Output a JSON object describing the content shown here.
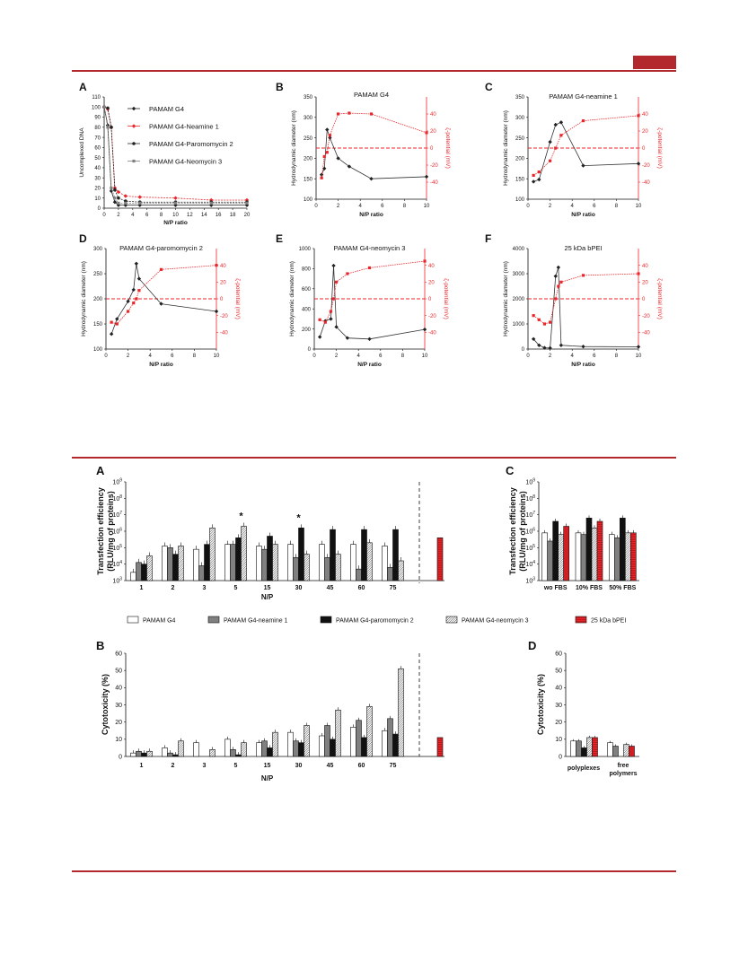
{
  "colors": {
    "accent": "#b3282d",
    "red": "#e8262b",
    "black": "#222222",
    "gray": "#808080",
    "darkgray": "#555555"
  },
  "fig1": {
    "A": {
      "letter": "A",
      "ylabel": "Uncomplexed DNA",
      "xlabel": "N/P ratio",
      "ylim": [
        0,
        110
      ],
      "xlim": [
        0,
        20
      ],
      "yticks": [
        0,
        10,
        20,
        30,
        40,
        50,
        60,
        70,
        80,
        90,
        100,
        110
      ],
      "xticks": [
        0,
        2,
        4,
        6,
        8,
        10,
        12,
        14,
        16,
        18,
        20
      ],
      "series": [
        {
          "name": "PAMAM G4",
          "color": "#222222",
          "marker": "diamond",
          "x": [
            0,
            0.5,
            1,
            1.5,
            2,
            3,
            5,
            10,
            15,
            20
          ],
          "y": [
            100,
            82,
            17,
            6,
            3,
            3,
            3,
            3,
            3,
            3
          ]
        },
        {
          "name": "PAMAM G4-Neamine 1",
          "color": "#e8262b",
          "marker": "diamond",
          "x": [
            0,
            0.5,
            1,
            1.5,
            2,
            3,
            5,
            10,
            15,
            20
          ],
          "y": [
            100,
            98,
            80,
            20,
            16,
            12,
            11,
            10,
            8,
            8
          ]
        },
        {
          "name": "PAMAM G4-Paromomycin 2",
          "color": "#222222",
          "marker": "circle",
          "x": [
            0,
            0.5,
            1,
            1.5,
            2,
            3,
            5,
            10,
            15,
            20
          ],
          "y": [
            100,
            99,
            80,
            18,
            10,
            7,
            6,
            6,
            6,
            6
          ]
        },
        {
          "name": "PAMAM G4-Neomycin 3",
          "color": "#808080",
          "marker": "square",
          "x": [
            0,
            0.5,
            1,
            1.5,
            2,
            3,
            5,
            10,
            15,
            20
          ],
          "y": [
            100,
            80,
            20,
            10,
            5,
            5,
            5,
            5,
            5,
            5
          ]
        }
      ]
    },
    "B": {
      "letter": "B",
      "title": "PAMAM G4",
      "ylabel": "Hydrodynamic diameter (nm)",
      "y2label": "ζ-potential (mV)",
      "xlabel": "N/P ratio",
      "ylim": [
        100,
        350
      ],
      "yticks": [
        100,
        150,
        200,
        250,
        300,
        350
      ],
      "xlim": [
        0,
        10
      ],
      "xticks": [
        0,
        2,
        4,
        6,
        8,
        10
      ],
      "size": {
        "x": [
          0.5,
          0.75,
          1,
          1.25,
          2,
          3,
          5,
          10
        ],
        "y": [
          160,
          175,
          270,
          250,
          200,
          180,
          150,
          155
        ]
      },
      "zeta": {
        "x": [
          0.5,
          0.75,
          1,
          1.25,
          2,
          3,
          5,
          10
        ],
        "y": [
          -35,
          -10,
          -5,
          15,
          40,
          41,
          40,
          18
        ]
      }
    },
    "C": {
      "letter": "C",
      "title": "PAMAM G4-neamine 1",
      "ylabel": "Hydrodynamic diameter (nm)",
      "y2label": "ζ-potential (mV)",
      "xlabel": "N/P ratio",
      "ylim": [
        100,
        350
      ],
      "yticks": [
        100,
        150,
        200,
        250,
        300,
        350
      ],
      "xlim": [
        0,
        10
      ],
      "xticks": [
        0,
        2,
        4,
        6,
        8,
        10
      ],
      "size": {
        "x": [
          0.5,
          1,
          2,
          2.5,
          3,
          5,
          10
        ],
        "y": [
          143,
          148,
          240,
          282,
          288,
          182,
          187
        ]
      },
      "zeta": {
        "x": [
          0.5,
          1,
          2,
          2.5,
          3,
          5,
          10
        ],
        "y": [
          -32,
          -28,
          -15,
          0,
          15,
          32,
          38
        ]
      }
    },
    "D": {
      "letter": "D",
      "title": "PAMAM G4-paromomycin 2",
      "ylabel": "Hydrodynamic diameter (nm)",
      "y2label": "ζ-potential (mV)",
      "xlabel": "N/P ratio",
      "ylim": [
        100,
        300
      ],
      "yticks": [
        100,
        150,
        200,
        250,
        300
      ],
      "xlim": [
        0,
        10
      ],
      "xticks": [
        0,
        2,
        4,
        6,
        8,
        10
      ],
      "size": {
        "x": [
          0.5,
          1,
          2,
          2.5,
          2.75,
          3,
          5,
          10
        ],
        "y": [
          130,
          160,
          195,
          218,
          270,
          240,
          190,
          175
        ]
      },
      "zeta": {
        "x": [
          0.5,
          1,
          2,
          2.5,
          2.75,
          3,
          5,
          10
        ],
        "y": [
          -28,
          -30,
          -15,
          -5,
          0,
          10,
          35,
          40
        ]
      }
    },
    "E": {
      "letter": "E",
      "title": "PAMAM G4-neomycin 3",
      "ylabel": "Hydrodynamic diameter (nm)",
      "y2label": "ζ-potential (mV)",
      "xlabel": "N/P ratio",
      "ylim": [
        0,
        1000
      ],
      "yticks": [
        0,
        200,
        400,
        600,
        800,
        1000
      ],
      "xlim": [
        0,
        10
      ],
      "xticks": [
        0,
        2,
        4,
        6,
        8,
        10
      ],
      "size": {
        "x": [
          0.5,
          1,
          1.5,
          1.75,
          2,
          3,
          5,
          10
        ],
        "y": [
          120,
          280,
          300,
          830,
          220,
          110,
          100,
          195
        ]
      },
      "zeta": {
        "x": [
          0.5,
          1,
          1.5,
          1.75,
          2,
          3,
          5,
          10
        ],
        "y": [
          -25,
          -28,
          -15,
          0,
          20,
          30,
          37,
          45
        ]
      }
    },
    "F": {
      "letter": "F",
      "title": "25 kDa bPEI",
      "ylabel": "Hydrodynamic diameter (nm)",
      "y2label": "ζ-potential (mV)",
      "xlabel": "N/P ratio",
      "ylim": [
        0,
        4000
      ],
      "yticks": [
        0,
        1000,
        2000,
        3000,
        4000
      ],
      "xlim": [
        0,
        10
      ],
      "xticks": [
        0,
        2,
        4,
        6,
        8,
        10
      ],
      "size": {
        "x": [
          0.5,
          1,
          1.5,
          2,
          2.5,
          2.75,
          3,
          5,
          10
        ],
        "y": [
          400,
          150,
          50,
          40,
          2900,
          3250,
          150,
          100,
          90
        ]
      },
      "zeta": {
        "x": [
          0.5,
          1,
          1.5,
          2,
          2.5,
          2.75,
          3,
          5,
          10
        ],
        "y": [
          -20,
          -25,
          -30,
          -28,
          0,
          15,
          20,
          28,
          30
        ]
      }
    },
    "y2ticks": [
      -40,
      -20,
      0,
      20,
      40
    ]
  },
  "fig2": {
    "legend": [
      "PAMAM G4",
      "PAMAM G4-neamine 1",
      "PAMAM G4-paromomycin 2",
      "PAMAM G4-neomycin 3",
      "25 kDa bPEI"
    ],
    "A": {
      "letter": "A",
      "ylabel": [
        "Transfection efficiency",
        "(RLU/mg of proteins)"
      ],
      "xlabel": "N/P",
      "categories": [
        "1",
        "2",
        "3",
        "5",
        "15",
        "30",
        "45",
        "60",
        "75"
      ],
      "series": [
        {
          "name": "PAMAM G4",
          "values": [
            3.5,
            5.1,
            4.9,
            5.2,
            5.1,
            5.2,
            5.2,
            5.2,
            5.1
          ]
        },
        {
          "name": "PAMAM G4-neamine 1",
          "values": [
            4.1,
            5.0,
            3.9,
            5.2,
            4.9,
            4.4,
            4.4,
            3.7,
            3.8
          ]
        },
        {
          "name": "PAMAM G4-paromomycin 2",
          "values": [
            4.0,
            4.6,
            5.2,
            5.6,
            5.7,
            6.2,
            6.1,
            6.1,
            6.1
          ]
        },
        {
          "name": "PAMAM G4-neomycin 3",
          "values": [
            4.5,
            5.1,
            6.2,
            6.3,
            5.2,
            4.6,
            4.6,
            5.3,
            4.2
          ]
        }
      ],
      "bpei": 5.6,
      "stars": [
        "5",
        "30"
      ],
      "star": "*"
    },
    "C": {
      "letter": "C",
      "categories": [
        "wo FBS",
        "10% FBS",
        "50% FBS"
      ],
      "series": [
        {
          "name": "PAMAM G4",
          "values": [
            5.9,
            5.9,
            5.8
          ]
        },
        {
          "name": "PAMAM G4-neamine 1",
          "values": [
            5.4,
            5.8,
            5.6
          ]
        },
        {
          "name": "PAMAM G4-paromomycin 2",
          "values": [
            6.6,
            6.8,
            6.8
          ]
        },
        {
          "name": "PAMAM G4-neomycin 3",
          "values": [
            5.8,
            6.2,
            5.9
          ]
        },
        {
          "name": "25 kDa bPEI",
          "values": [
            6.3,
            6.6,
            5.9
          ]
        }
      ]
    },
    "B": {
      "letter": "B",
      "ylabel": "Cytotoxicity (%)",
      "xlabel": "N/P",
      "ylim": [
        0,
        60
      ],
      "categories": [
        "1",
        "2",
        "3",
        "5",
        "15",
        "30",
        "45",
        "60",
        "75"
      ],
      "series": [
        {
          "name": "PAMAM G4",
          "values": [
            2,
            5,
            8,
            10,
            8,
            14,
            12,
            17,
            15
          ]
        },
        {
          "name": "PAMAM G4-neamine 1",
          "values": [
            3,
            2,
            0,
            4,
            9,
            9,
            18,
            21,
            22
          ]
        },
        {
          "name": "PAMAM G4-paromomycin 2",
          "values": [
            2,
            1,
            0,
            1,
            5,
            8,
            10,
            11,
            13
          ]
        },
        {
          "name": "PAMAM G4-neomycin 3",
          "values": [
            3,
            9,
            4,
            8,
            14,
            18,
            27,
            29,
            51
          ]
        }
      ],
      "bpei": 11
    },
    "D": {
      "letter": "D",
      "ylabel": "Cytotoxicity (%)",
      "ylim": [
        0,
        60
      ],
      "categories": [
        "polyplexes",
        "free polymers"
      ],
      "series": [
        {
          "name": "PAMAM G4",
          "values": [
            9,
            8
          ]
        },
        {
          "name": "PAMAM G4-neamine 1",
          "values": [
            9,
            6
          ]
        },
        {
          "name": "PAMAM G4-paromomycin 2",
          "values": [
            5,
            0
          ]
        },
        {
          "name": "PAMAM G4-neomycin 3",
          "values": [
            11,
            7
          ]
        },
        {
          "name": "25 kDa bPEI",
          "values": [
            11,
            6
          ]
        }
      ]
    }
  }
}
